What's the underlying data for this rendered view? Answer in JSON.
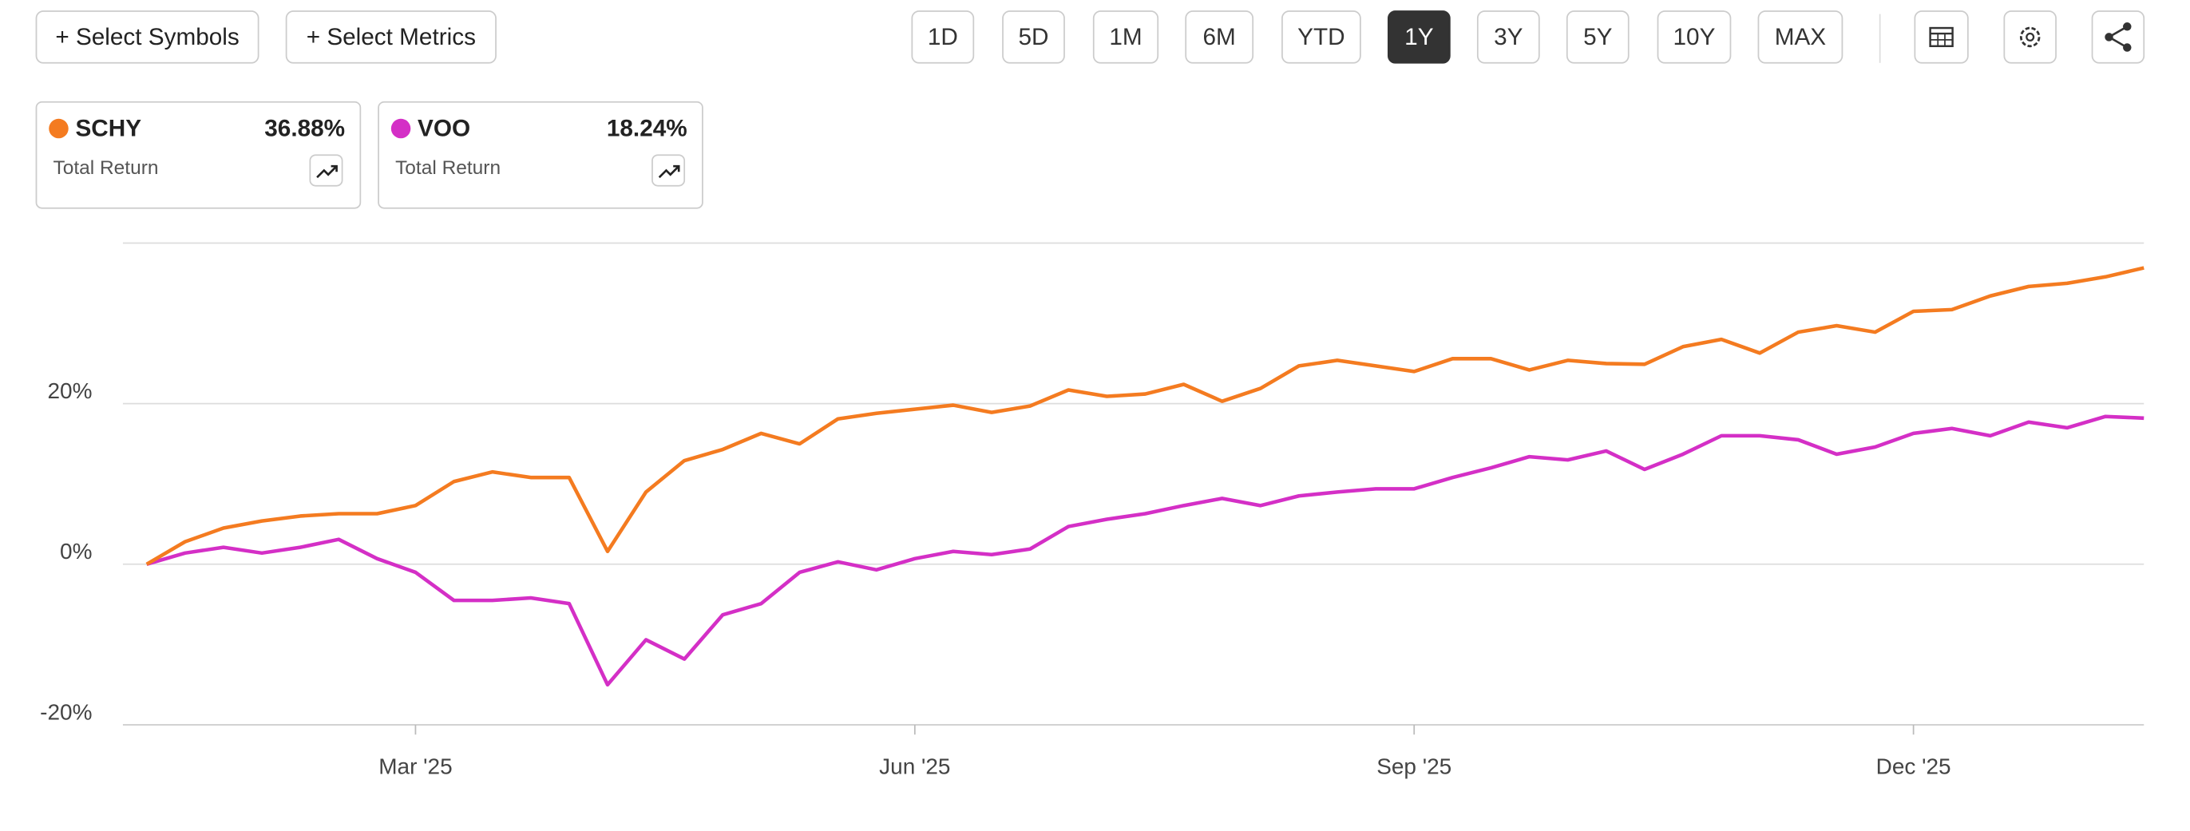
{
  "toolbar": {
    "buttons": [
      "+ Select Symbols",
      "+ Select Metrics"
    ],
    "ranges": [
      {
        "label": "1D",
        "active": false
      },
      {
        "label": "5D",
        "active": false
      },
      {
        "label": "1M",
        "active": false
      },
      {
        "label": "6M",
        "active": false
      },
      {
        "label": "YTD",
        "active": false
      },
      {
        "label": "1Y",
        "active": true
      },
      {
        "label": "3Y",
        "active": false
      },
      {
        "label": "5Y",
        "active": false
      },
      {
        "label": "10Y",
        "active": false
      },
      {
        "label": "MAX",
        "active": false
      }
    ]
  },
  "legend_cards": [
    {
      "value": "36.88%",
      "metric": "Total Return"
    },
    {
      "value": "18.24%",
      "metric": "Total Return"
    }
  ],
  "chart_data": {
    "type": "line",
    "categories": [
      null,
      null,
      null,
      null,
      null,
      null,
      null,
      "Mar '25",
      null,
      null,
      null,
      null,
      null,
      null,
      null,
      null,
      null,
      null,
      null,
      null,
      "Jun '25",
      null,
      null,
      null,
      null,
      null,
      null,
      null,
      null,
      null,
      null,
      null,
      null,
      "Sep '25",
      null,
      null,
      null,
      null,
      null,
      null,
      null,
      null,
      null,
      null,
      null,
      null,
      "Dec '25",
      null,
      null,
      null,
      null,
      null,
      null
    ],
    "series": [
      {
        "name": "SCHY",
        "color": "#f47b20",
        "values": [
          0,
          2.8,
          4.5,
          5.4,
          6,
          6.3,
          6.3,
          7.3,
          10.3,
          11.5,
          10.8,
          10.8,
          1.6,
          9,
          12.9,
          14.3,
          16.3,
          15,
          18.1,
          18.8,
          19.3,
          19.8,
          18.9,
          19.7,
          21.7,
          20.9,
          21.2,
          22.4,
          20.3,
          21.9,
          24.7,
          25.4,
          24.7,
          24,
          25.6,
          25.6,
          24.2,
          25.4,
          25,
          24.9,
          27.1,
          28,
          26.3,
          28.9,
          29.7,
          28.9,
          31.5,
          31.7,
          33.4,
          34.6,
          35,
          35.8,
          36.9
        ]
      },
      {
        "name": "VOO",
        "color": "#d42fc6",
        "values": [
          0,
          1.4,
          2.1,
          1.4,
          2.1,
          3.1,
          0.7,
          -1,
          -4.5,
          -4.5,
          -4.2,
          -4.9,
          -15,
          -9.4,
          -11.8,
          -6.3,
          -4.9,
          -1,
          0.3,
          -0.7,
          0.7,
          1.6,
          1.2,
          1.9,
          4.7,
          5.6,
          6.3,
          7.3,
          8.2,
          7.3,
          8.5,
          9,
          9.4,
          9.4,
          10.8,
          12,
          13.4,
          13,
          14.1,
          11.8,
          13.7,
          16,
          16,
          15.5,
          13.7,
          14.6,
          16.3,
          16.9,
          16,
          17.7,
          17,
          18.4,
          18.2
        ]
      }
    ],
    "ylim": [
      -20,
      40
    ],
    "yticks": [
      {
        "value": -20,
        "label": "-20%"
      },
      {
        "value": 0,
        "label": "0%"
      },
      {
        "value": 20,
        "label": "20%"
      }
    ],
    "grid": true
  }
}
